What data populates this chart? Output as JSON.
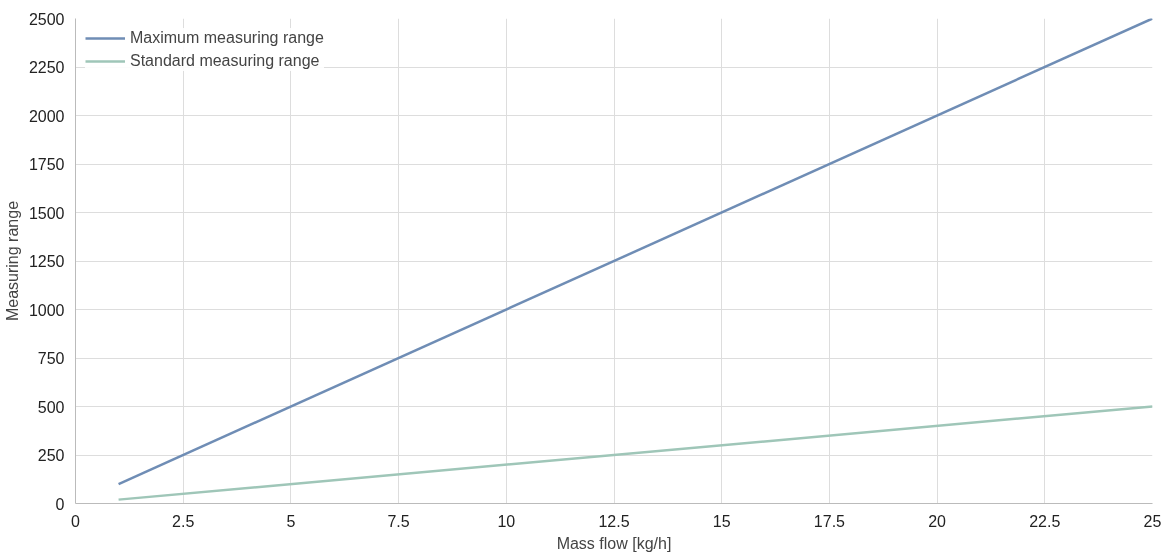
{
  "chart_data": {
    "type": "line",
    "xlabel": "Mass flow [kg/h]",
    "ylabel": "Measuring range",
    "x": [
      1,
      25
    ],
    "series": [
      {
        "name": "Maximum measuring range",
        "color": "#6f8db5",
        "values": [
          100,
          2500
        ]
      },
      {
        "name": "Standard measuring range",
        "color": "#9fc6b8",
        "values": [
          20,
          500
        ]
      }
    ],
    "xlim": [
      0,
      25
    ],
    "xticks": [
      0,
      2.5,
      5,
      7.5,
      10,
      12.5,
      15,
      17.5,
      20,
      22.5,
      25
    ],
    "ylim": [
      0,
      2500
    ],
    "yticks": [
      0,
      250,
      500,
      750,
      1000,
      1250,
      1500,
      1750,
      2000,
      2250,
      2500
    ],
    "grid": true,
    "legend": "top left",
    "marker": "none",
    "line_style": "solid"
  }
}
